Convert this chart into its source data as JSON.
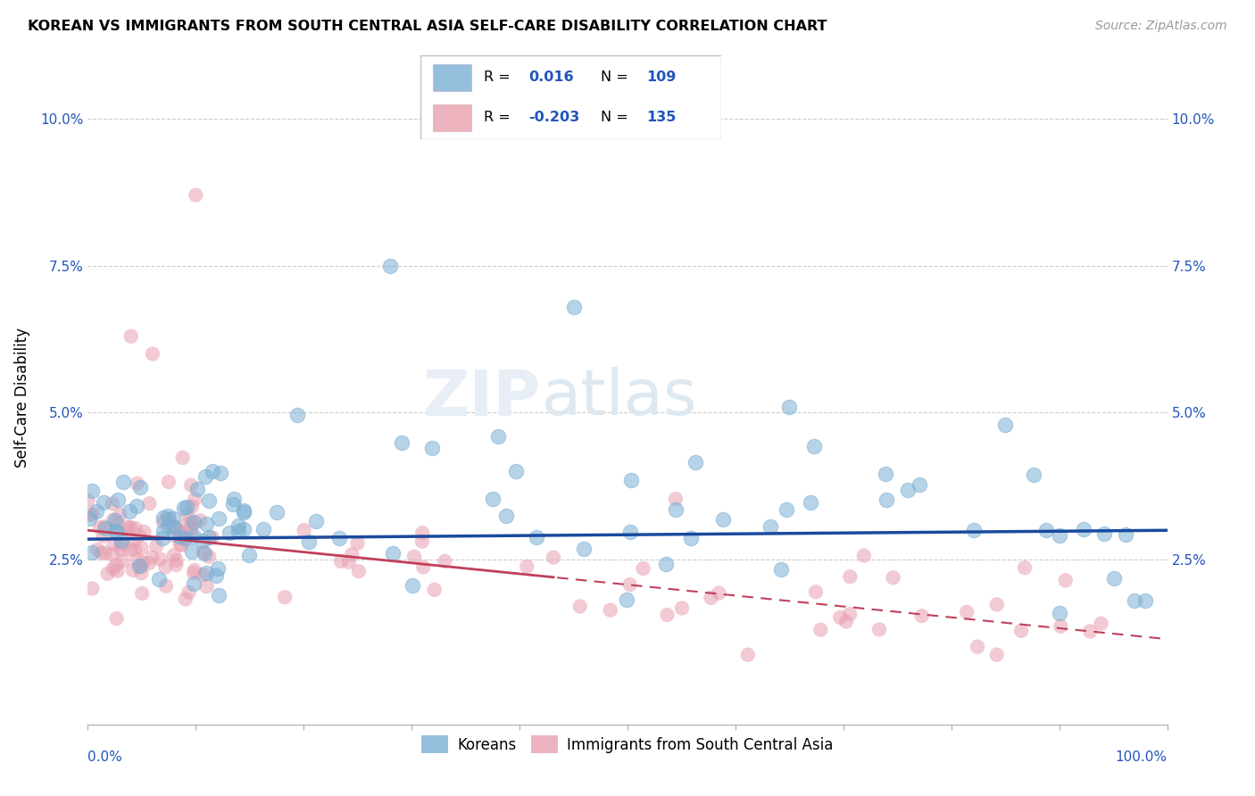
{
  "title": "KOREAN VS IMMIGRANTS FROM SOUTH CENTRAL ASIA SELF-CARE DISABILITY CORRELATION CHART",
  "source": "Source: ZipAtlas.com",
  "ylabel": "Self-Care Disability",
  "ytick_labels": [
    "",
    "2.5%",
    "5.0%",
    "7.5%",
    "10.0%"
  ],
  "blue_color": "#7bafd4",
  "pink_color": "#e8a0b0",
  "blue_line_color": "#1a4a9e",
  "pink_line_color": "#c0405a",
  "watermark_zip": "ZIP",
  "watermark_atlas": "atlas",
  "legend_r1_label": "R = ",
  "legend_r1_val": "0.016",
  "legend_n1_label": "N = ",
  "legend_n1_val": "109",
  "legend_r2_label": "R = -",
  "legend_r2_val": "0.203",
  "legend_n2_label": "N = ",
  "legend_n2_val": "135"
}
